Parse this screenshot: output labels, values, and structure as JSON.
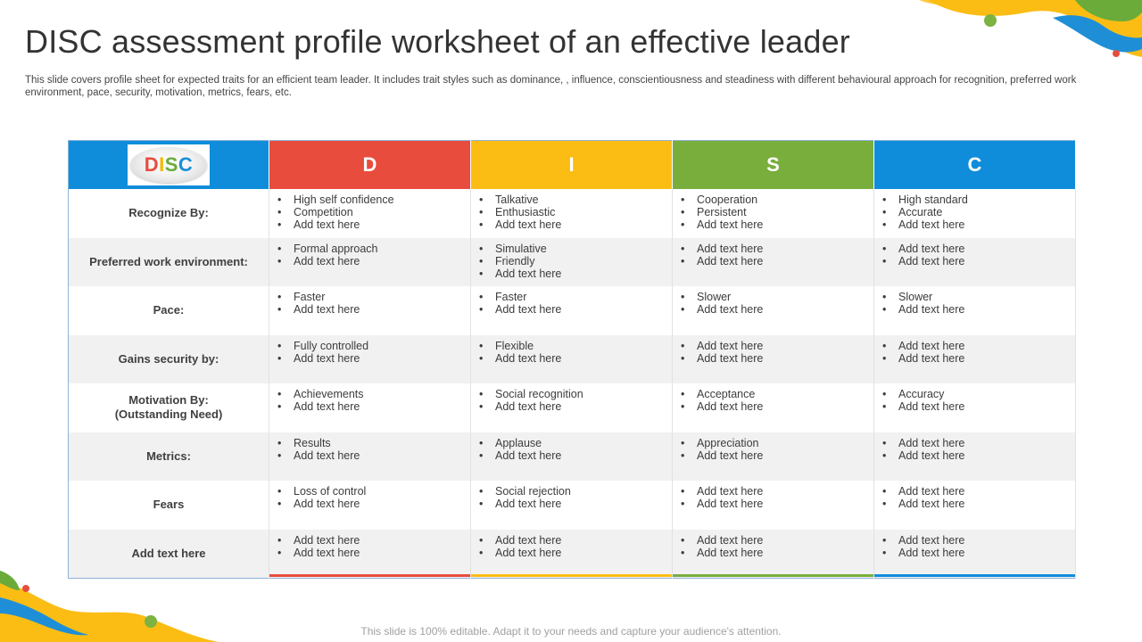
{
  "slide": {
    "title": "DISC assessment profile worksheet of an effective leader",
    "subtitle": "This slide covers profile sheet for expected traits for an efficient team leader. It includes trait styles such as dominance, , influence, conscientiousness and steadiness with different behavioural approach for recognition, preferred work environment, pace, security, motivation, metrics, fears, etc.",
    "footer": "This slide is 100% editable. Adapt it to your needs and capture your audience's attention."
  },
  "logo": {
    "letters": [
      {
        "char": "D",
        "color": "#e84c3d"
      },
      {
        "char": "I",
        "color": "#f5b800"
      },
      {
        "char": "S",
        "color": "#6aab3a"
      },
      {
        "char": "C",
        "color": "#1a8fd8"
      }
    ]
  },
  "columns": [
    {
      "label": "D",
      "color": "#e84c3d"
    },
    {
      "label": "I",
      "color": "#fbbd14"
    },
    {
      "label": "S",
      "color": "#79ad3c"
    },
    {
      "label": "C",
      "color": "#0f8ddb"
    }
  ],
  "header_first_color": "#0f8ddb",
  "rows": [
    {
      "label": "Recognize By:",
      "cells": [
        [
          "High self confidence",
          "Competition",
          "Add text here"
        ],
        [
          "Talkative",
          "Enthusiastic",
          "Add text here"
        ],
        [
          "Cooperation",
          "Persistent",
          "Add text here"
        ],
        [
          "High standard",
          "Accurate",
          "Add text here"
        ]
      ]
    },
    {
      "label": "Preferred work environment:",
      "cells": [
        [
          "Formal approach",
          "Add text here"
        ],
        [
          "Simulative",
          "Friendly",
          "Add text here"
        ],
        [
          "Add text here",
          "Add text here"
        ],
        [
          "Add text here",
          "Add text here"
        ]
      ]
    },
    {
      "label": "Pace:",
      "cells": [
        [
          "Faster",
          "Add text here"
        ],
        [
          "Faster",
          "Add text here"
        ],
        [
          "Slower",
          "Add text here"
        ],
        [
          "Slower",
          "Add text here"
        ]
      ]
    },
    {
      "label": "Gains security  by:",
      "cells": [
        [
          "Fully controlled",
          "Add text here"
        ],
        [
          "Flexible",
          "Add text here"
        ],
        [
          "Add text here",
          "Add text here"
        ],
        [
          "Add text here",
          "Add text here"
        ]
      ]
    },
    {
      "label": "Motivation By:\n(Outstanding  Need)",
      "cells": [
        [
          "Achievements",
          "Add text here"
        ],
        [
          "Social recognition",
          "Add text here"
        ],
        [
          "Acceptance",
          "Add text here"
        ],
        [
          "Accuracy",
          "Add text here"
        ]
      ]
    },
    {
      "label": "Metrics:",
      "cells": [
        [
          "Results",
          "Add text here"
        ],
        [
          "Applause",
          "Add text here"
        ],
        [
          "Appreciation",
          "Add text here"
        ],
        [
          "Add text here",
          "Add text here"
        ]
      ]
    },
    {
      "label": "Fears",
      "cells": [
        [
          "Loss of control",
          "Add text here"
        ],
        [
          "Social rejection",
          "Add text here"
        ],
        [
          "Add text here",
          "Add text here"
        ],
        [
          "Add text here",
          "Add text here"
        ]
      ]
    },
    {
      "label": "Add text here",
      "cells": [
        [
          "Add text here",
          "Add text here"
        ],
        [
          "Add text here",
          "Add text here"
        ],
        [
          "Add text here",
          "Add text here"
        ],
        [
          "Add text here",
          "Add text here"
        ]
      ]
    }
  ]
}
